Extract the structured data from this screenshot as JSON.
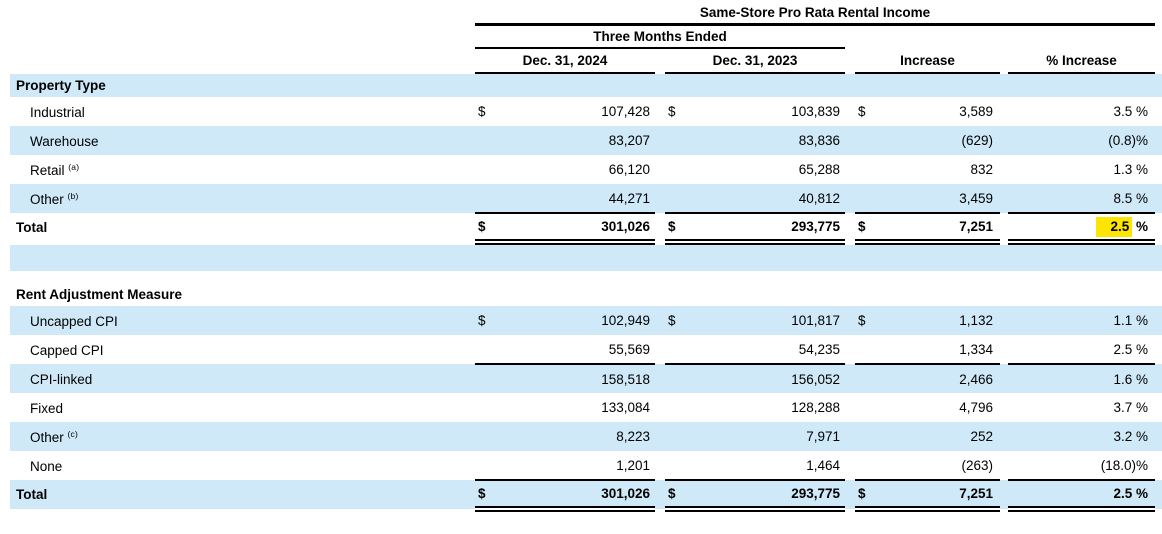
{
  "colors": {
    "band_blue": "#cfe9f8",
    "highlight_yellow": "#fde503",
    "rule_black": "#000000",
    "text": "#000000"
  },
  "table": {
    "title": "Same-Store Pro Rata Rental Income",
    "period_header": "Three Months Ended",
    "col_headers": {
      "c2024": "Dec. 31, 2024",
      "c2023": "Dec. 31, 2023",
      "increase": "Increase",
      "pct_increase": "% Increase"
    },
    "sections": [
      {
        "header": "Property Type",
        "rows": [
          {
            "label": "Industrial",
            "sup": "",
            "d": "$",
            "v2024": "107,428",
            "v2023": "103,839",
            "increase": "3,589",
            "pct": "3.5 %"
          },
          {
            "label": "Warehouse",
            "sup": "",
            "d": "",
            "v2024": "83,207",
            "v2023": "83,836",
            "increase": "(629)",
            "pct": "(0.8)%"
          },
          {
            "label": "Retail",
            "sup": "(a)",
            "d": "",
            "v2024": "66,120",
            "v2023": "65,288",
            "increase": "832",
            "pct": "1.3 %"
          },
          {
            "label": "Other",
            "sup": "(b)",
            "d": "",
            "v2024": "44,271",
            "v2023": "40,812",
            "increase": "3,459",
            "pct": "8.5 %"
          }
        ],
        "total": {
          "label": "Total",
          "d": "$",
          "v2024": "301,026",
          "v2023": "293,775",
          "increase": "7,251",
          "pct_highlight": "2.5",
          "pct_rest": " %"
        }
      },
      {
        "header": "Rent Adjustment Measure",
        "rows": [
          {
            "label": "Uncapped CPI",
            "sup": "",
            "d": "$",
            "v2024": "102,949",
            "v2023": "101,817",
            "increase": "1,132",
            "pct": "1.1 %"
          },
          {
            "label": "Capped CPI",
            "sup": "",
            "d": "",
            "v2024": "55,569",
            "v2023": "54,235",
            "increase": "1,334",
            "pct": "2.5 %"
          },
          {
            "label": "CPI-linked",
            "sup": "",
            "d": "",
            "v2024": "158,518",
            "v2023": "156,052",
            "increase": "2,466",
            "pct": "1.6 %"
          },
          {
            "label": "Fixed",
            "sup": "",
            "d": "",
            "v2024": "133,084",
            "v2023": "128,288",
            "increase": "4,796",
            "pct": "3.7 %"
          },
          {
            "label": "Other",
            "sup": "(c)",
            "d": "",
            "v2024": "8,223",
            "v2023": "7,971",
            "increase": "252",
            "pct": "3.2 %"
          },
          {
            "label": "None",
            "sup": "",
            "d": "",
            "v2024": "1,201",
            "v2023": "1,464",
            "increase": "(263)",
            "pct": "(18.0)%"
          }
        ],
        "total": {
          "label": "Total",
          "d": "$",
          "v2024": "301,026",
          "v2023": "293,775",
          "increase": "7,251",
          "pct": "2.5 %"
        }
      }
    ]
  }
}
